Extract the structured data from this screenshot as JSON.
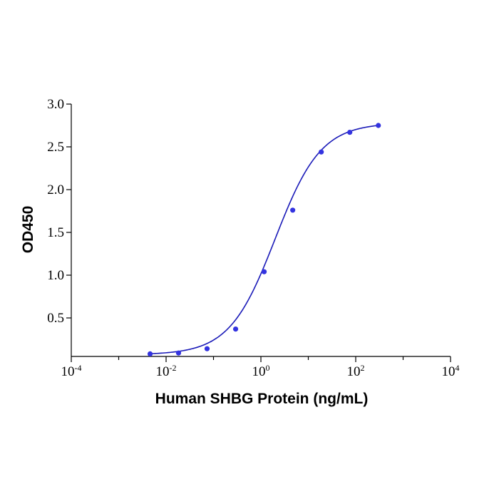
{
  "chart_data": {
    "type": "scatter",
    "title": "",
    "xlabel": "Human SHBG Protein (ng/mL)",
    "ylabel": "OD450",
    "x_scale": "log",
    "xlim": [
      0.0001,
      10000
    ],
    "ylim": [
      0.05,
      3.0
    ],
    "x_ticks": [
      {
        "value": 0.0001,
        "base": "10",
        "exp": "-4"
      },
      {
        "value": 0.01,
        "base": "10",
        "exp": "-2"
      },
      {
        "value": 1,
        "base": "10",
        "exp": "0"
      },
      {
        "value": 100,
        "base": "10",
        "exp": "2"
      },
      {
        "value": 10000,
        "base": "10",
        "exp": "4"
      }
    ],
    "y_ticks": [
      {
        "value": 0.5,
        "label": "0.5"
      },
      {
        "value": 1.0,
        "label": "1.0"
      },
      {
        "value": 1.5,
        "label": "1.5"
      },
      {
        "value": 2.0,
        "label": "2.0"
      },
      {
        "value": 2.5,
        "label": "2.5"
      },
      {
        "value": 3.0,
        "label": "3.0"
      }
    ],
    "grid": false,
    "color": "#1a1ab8",
    "point_color": "#3333e0",
    "series": [
      {
        "x": [
          0.0046,
          0.0183,
          0.0732,
          0.293,
          1.17,
          4.69,
          18.75,
          75,
          300
        ],
        "y": [
          0.08,
          0.09,
          0.14,
          0.37,
          1.04,
          1.76,
          2.44,
          2.67,
          2.75
        ]
      }
    ],
    "fit_curve": {
      "model": "4PL",
      "bottom": 0.07,
      "top": 2.78,
      "ec50": 2.0,
      "hill": 0.9
    }
  }
}
